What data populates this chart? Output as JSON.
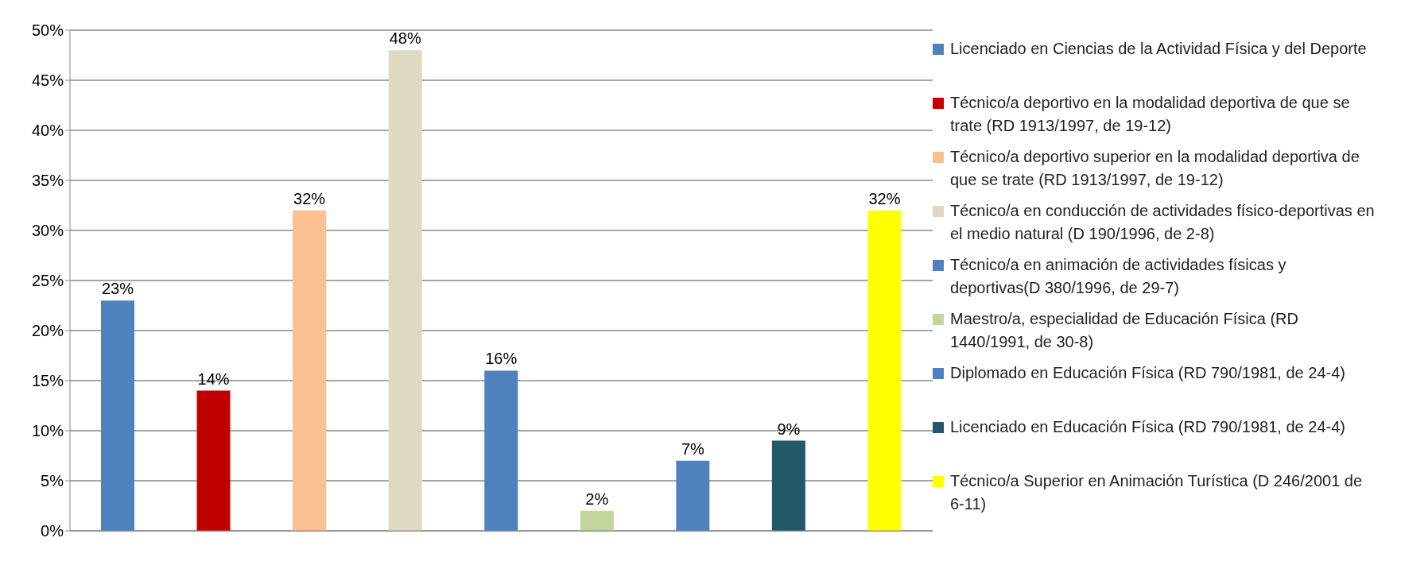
{
  "chart_data": {
    "type": "bar",
    "categories": [
      null,
      null,
      null,
      null,
      null,
      null,
      null,
      null,
      null
    ],
    "series": [
      {
        "name": "Licenciado en Ciencias de la Actividad Física y del Deporte",
        "color": "#4f81bd",
        "values": [
          23,
          null,
          null,
          null,
          null,
          null,
          null,
          null,
          null
        ],
        "value_labels": [
          "23%",
          null,
          null,
          null,
          null,
          null,
          null,
          null,
          null
        ]
      },
      {
        "name": "Técnico/a deportivo en la modalidad deportiva de que se trate (RD 1913/1997, de 19-12)",
        "color": "#c00000",
        "values": [
          null,
          14,
          null,
          null,
          null,
          null,
          null,
          null,
          null
        ],
        "value_labels": [
          null,
          "14%",
          null,
          null,
          null,
          null,
          null,
          null,
          null
        ]
      },
      {
        "name": "Técnico/a deportivo superior en la modalidad deportiva de que se trate (RD 1913/1997, de 19-12)",
        "color": "#fac090",
        "values": [
          null,
          null,
          32,
          null,
          null,
          null,
          null,
          null,
          null
        ],
        "value_labels": [
          null,
          null,
          "32%",
          null,
          null,
          null,
          null,
          null,
          null
        ]
      },
      {
        "name": "Técnico/a en conducción de actividades físico-deportivas en el medio natural (D 190/1996, de 2-8)",
        "color": "#ddd9c3",
        "values": [
          null,
          null,
          null,
          48,
          null,
          null,
          null,
          null,
          null
        ],
        "value_labels": [
          null,
          null,
          null,
          "48%",
          null,
          null,
          null,
          null,
          null
        ]
      },
      {
        "name": "Técnico/a en animación de actividades físicas y deportivas(D 380/1996, de 29-7)",
        "color": "#4f81bd",
        "values": [
          null,
          null,
          null,
          null,
          16,
          null,
          null,
          null,
          null
        ],
        "value_labels": [
          null,
          null,
          null,
          null,
          "16%",
          null,
          null,
          null,
          null
        ]
      },
      {
        "name": "Maestro/a, especialidad de Educación Física (RD 1440/1991, de 30-8)",
        "color": "#c3d69b",
        "values": [
          null,
          null,
          null,
          null,
          null,
          2,
          null,
          null,
          null
        ],
        "value_labels": [
          null,
          null,
          null,
          null,
          null,
          "2%",
          null,
          null,
          null
        ]
      },
      {
        "name": "Diplomado en Educación Física (RD 790/1981, de 24-4)",
        "color": "#4f81bd",
        "values": [
          null,
          null,
          null,
          null,
          null,
          null,
          7,
          null,
          null
        ],
        "value_labels": [
          null,
          null,
          null,
          null,
          null,
          null,
          "7%",
          null,
          null
        ]
      },
      {
        "name": "Licenciado en Educación Física (RD 790/1981, de 24-4)",
        "color": "#215968",
        "values": [
          null,
          null,
          null,
          null,
          null,
          null,
          null,
          9,
          null
        ],
        "value_labels": [
          null,
          null,
          null,
          null,
          null,
          null,
          null,
          "9%",
          null
        ]
      },
      {
        "name": "Técnico/a Superior en Animación Turística (D 246/2001 de 6-11)",
        "color": "#ffff00",
        "values": [
          null,
          null,
          null,
          null,
          null,
          null,
          null,
          null,
          32
        ],
        "value_labels": [
          null,
          null,
          null,
          null,
          null,
          null,
          null,
          null,
          "32%"
        ]
      }
    ],
    "ylim": [
      0,
      50
    ],
    "yticks": [
      {
        "value": 0,
        "label": "0%"
      },
      {
        "value": 5,
        "label": "5%"
      },
      {
        "value": 10,
        "label": "10%"
      },
      {
        "value": 15,
        "label": "15%"
      },
      {
        "value": 20,
        "label": "20%"
      },
      {
        "value": 25,
        "label": "25%"
      },
      {
        "value": 30,
        "label": "30%"
      },
      {
        "value": 35,
        "label": "35%"
      },
      {
        "value": 40,
        "label": "40%"
      },
      {
        "value": 45,
        "label": "45%"
      },
      {
        "value": 50,
        "label": "50%"
      }
    ],
    "grid": "y",
    "legend": "right"
  }
}
